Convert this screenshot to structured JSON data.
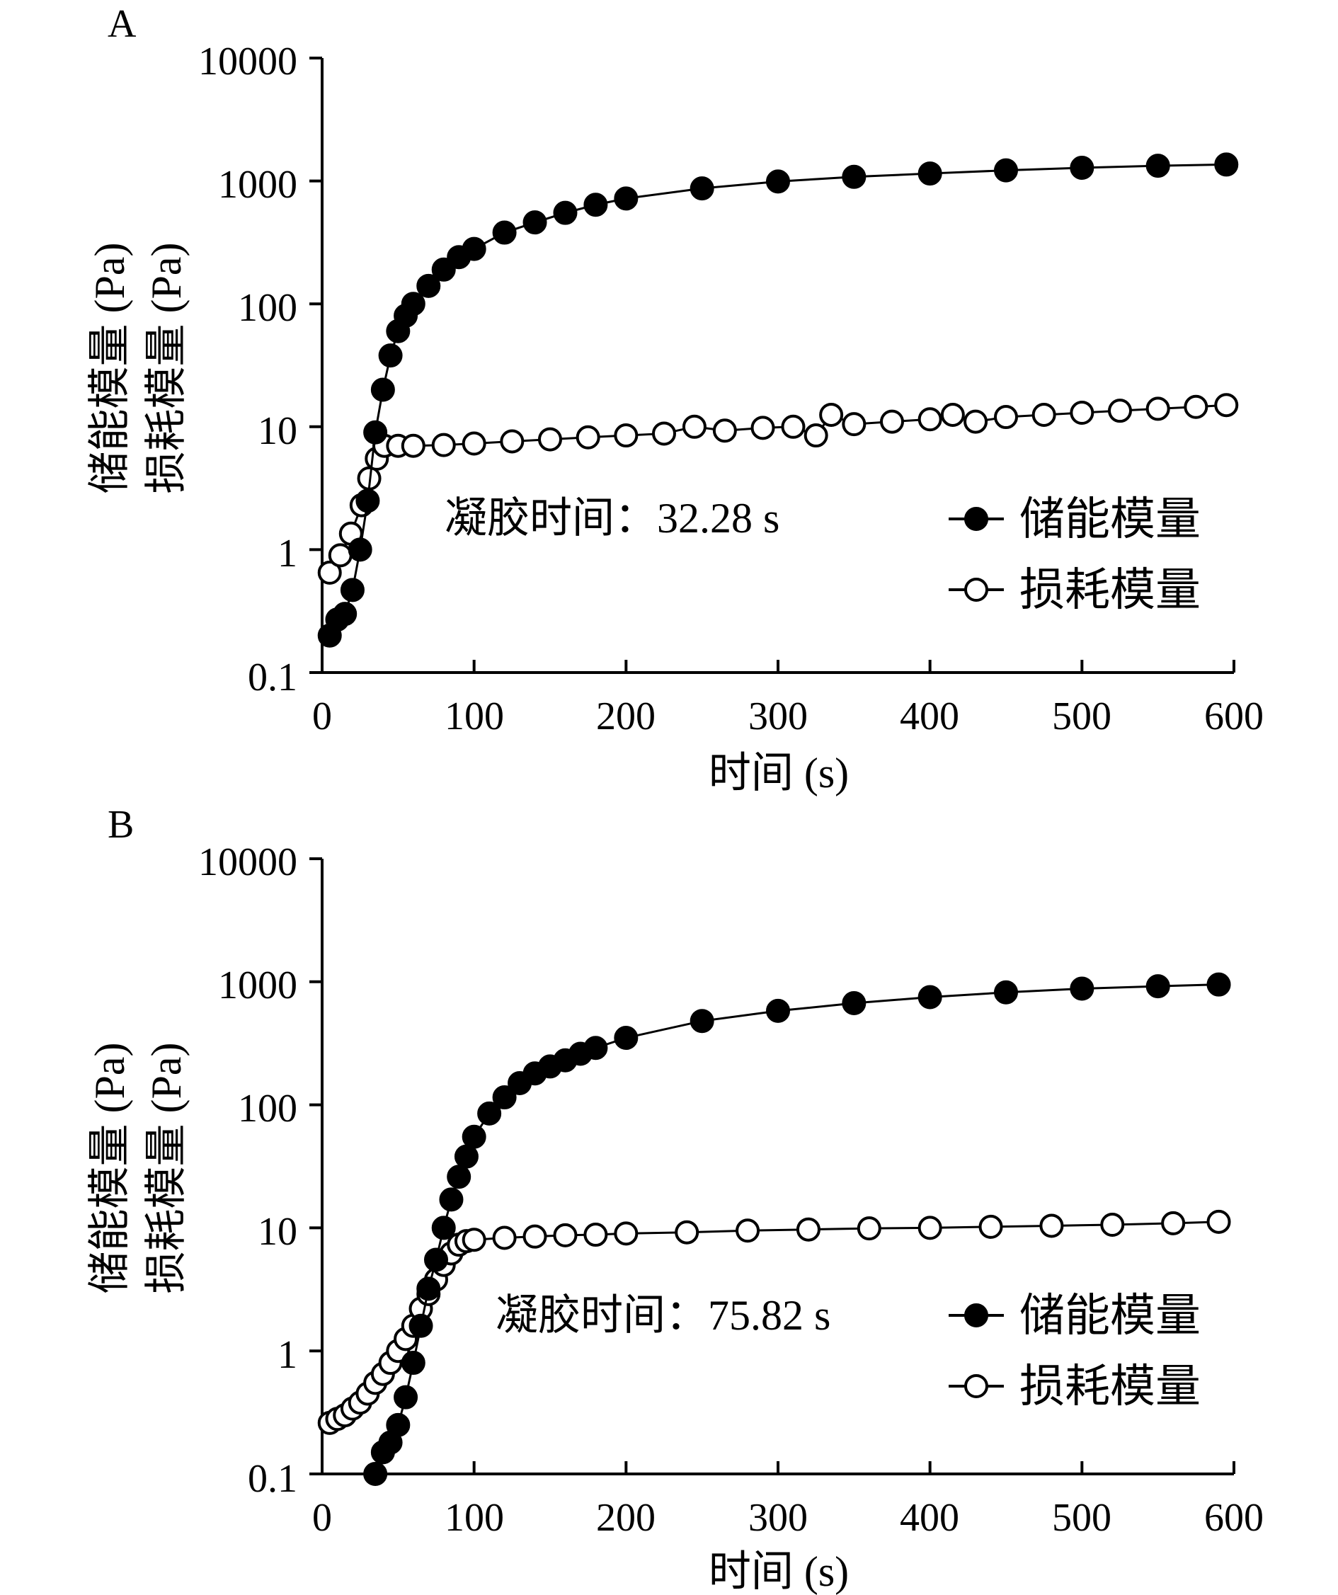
{
  "chart_data": [
    {
      "panel_label": "A",
      "type": "scatter",
      "xlabel": "时间 (s)",
      "ylabel_line1": "储能模量 (Pa)",
      "ylabel_line2": "损耗模量 (Pa)",
      "x_ticks": [
        "0",
        "100",
        "200",
        "300",
        "400",
        "500",
        "600"
      ],
      "y_ticks": [
        "0.1",
        "1",
        "10",
        "100",
        "1000",
        "10000"
      ],
      "xlim": [
        0,
        600
      ],
      "ylim": [
        0.1,
        10000
      ],
      "yscale": "log",
      "annotation": "凝胶时间：32.28 s",
      "legend_position": "right",
      "series": [
        {
          "name": "储能模量",
          "marker": "filled-circle",
          "color": "#000000",
          "x": [
            5,
            10,
            15,
            20,
            25,
            30,
            35,
            40,
            45,
            50,
            55,
            60,
            70,
            80,
            90,
            100,
            120,
            140,
            160,
            180,
            200,
            250,
            300,
            350,
            400,
            450,
            500,
            550,
            595
          ],
          "y": [
            0.2,
            0.27,
            0.3,
            0.47,
            1.0,
            2.5,
            9,
            20,
            38,
            60,
            80,
            100,
            140,
            190,
            240,
            280,
            380,
            460,
            550,
            640,
            720,
            870,
            990,
            1080,
            1150,
            1220,
            1280,
            1330,
            1360
          ]
        },
        {
          "name": "损耗模量",
          "marker": "open-circle",
          "color": "#000000",
          "x": [
            5,
            12,
            19,
            26,
            31,
            36,
            41,
            50,
            60,
            80,
            100,
            125,
            150,
            175,
            200,
            225,
            245,
            265,
            290,
            310,
            325,
            335,
            350,
            375,
            400,
            415,
            430,
            450,
            475,
            500,
            525,
            550,
            575,
            595
          ],
          "y": [
            0.65,
            0.9,
            1.35,
            2.3,
            3.8,
            5.5,
            7.0,
            7.0,
            7.0,
            7.1,
            7.3,
            7.6,
            7.9,
            8.2,
            8.5,
            8.8,
            10.0,
            9.3,
            9.8,
            10.0,
            8.5,
            12.5,
            10.5,
            11.0,
            11.5,
            12.5,
            11.0,
            12.0,
            12.5,
            13.0,
            13.5,
            14.0,
            14.5,
            15.0
          ]
        }
      ]
    },
    {
      "panel_label": "B",
      "type": "scatter",
      "xlabel": "时间 (s)",
      "ylabel_line1": "储能模量 (Pa)",
      "ylabel_line2": "损耗模量 (Pa)",
      "x_ticks": [
        "0",
        "100",
        "200",
        "300",
        "400",
        "500",
        "600"
      ],
      "y_ticks": [
        "0.1",
        "1",
        "10",
        "100",
        "1000",
        "10000"
      ],
      "xlim": [
        0,
        600
      ],
      "ylim": [
        0.1,
        10000
      ],
      "yscale": "log",
      "annotation": "凝胶时间：75.82 s",
      "legend_position": "right",
      "series": [
        {
          "name": "储能模量",
          "marker": "filled-circle",
          "color": "#000000",
          "x": [
            35,
            40,
            45,
            50,
            55,
            60,
            65,
            70,
            75,
            80,
            85,
            90,
            95,
            100,
            110,
            120,
            130,
            140,
            150,
            160,
            170,
            180,
            200,
            250,
            300,
            350,
            400,
            450,
            500,
            550,
            590
          ],
          "y": [
            0.1,
            0.15,
            0.18,
            0.25,
            0.42,
            0.8,
            1.6,
            3.2,
            5.5,
            10,
            17,
            26,
            38,
            55,
            85,
            115,
            150,
            180,
            205,
            230,
            260,
            290,
            350,
            480,
            580,
            670,
            750,
            820,
            880,
            920,
            950
          ]
        },
        {
          "name": "损耗模量",
          "marker": "open-circle",
          "color": "#000000",
          "x": [
            5,
            10,
            15,
            20,
            25,
            30,
            35,
            40,
            45,
            50,
            55,
            60,
            65,
            70,
            75,
            80,
            85,
            90,
            95,
            100,
            120,
            140,
            160,
            180,
            200,
            240,
            280,
            320,
            360,
            400,
            440,
            480,
            520,
            560,
            590
          ],
          "y": [
            0.26,
            0.28,
            0.3,
            0.34,
            0.38,
            0.45,
            0.55,
            0.65,
            0.8,
            1.0,
            1.25,
            1.6,
            2.2,
            2.9,
            3.8,
            5.0,
            6.2,
            7.3,
            7.8,
            8.0,
            8.3,
            8.5,
            8.7,
            8.8,
            9.0,
            9.2,
            9.5,
            9.7,
            9.9,
            10.0,
            10.2,
            10.4,
            10.6,
            10.9,
            11.2
          ]
        }
      ]
    }
  ]
}
